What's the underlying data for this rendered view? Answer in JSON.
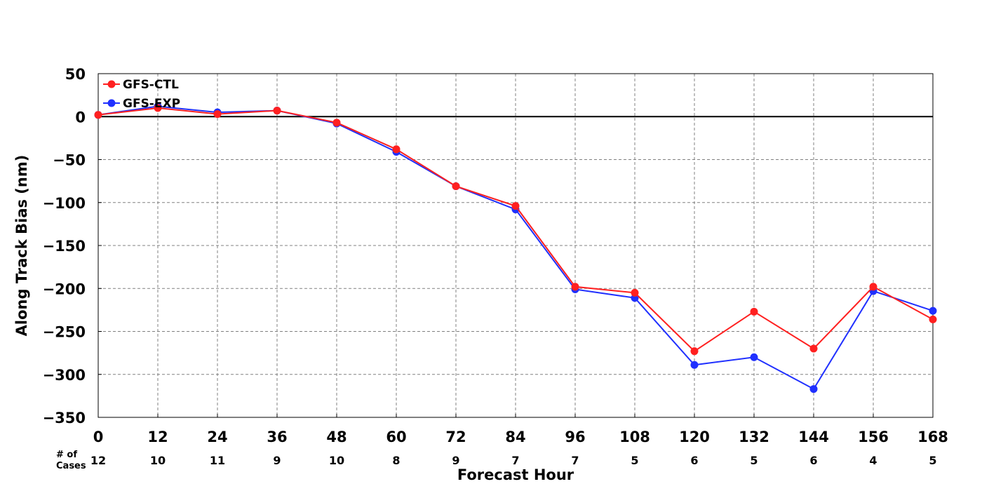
{
  "chart_data": {
    "type": "line",
    "xlabel": "Forecast Hour",
    "ylabel": "Along Track Bias (nm)",
    "xlim": [
      0,
      168
    ],
    "ylim": [
      -350,
      50
    ],
    "grid": true,
    "legend_position": "top-left",
    "x": [
      0,
      12,
      24,
      36,
      48,
      60,
      72,
      84,
      96,
      108,
      120,
      132,
      144,
      156,
      168
    ],
    "x_tick_labels": [
      "0",
      "12",
      "24",
      "36",
      "48",
      "60",
      "72",
      "84",
      "96",
      "108",
      "120",
      "132",
      "144",
      "156",
      "168"
    ],
    "y_ticks": [
      50,
      0,
      -50,
      -100,
      -150,
      -200,
      -250,
      -300,
      -350
    ],
    "y_tick_labels": [
      "50",
      "0",
      "−50",
      "−100",
      "−150",
      "−200",
      "−250",
      "−300",
      "−350"
    ],
    "cases_header": [
      "# of",
      "Cases"
    ],
    "cases": [
      "12",
      "10",
      "11",
      "9",
      "10",
      "8",
      "9",
      "7",
      "7",
      "5",
      "6",
      "5",
      "6",
      "4",
      "5"
    ],
    "series": [
      {
        "name": "GFS-CTL",
        "color": "#ff2020",
        "values": [
          2,
          10,
          3,
          7,
          -7,
          -38,
          -81,
          -104,
          -198,
          -205,
          -273,
          -227,
          -270,
          -198,
          -236
        ]
      },
      {
        "name": "GFS-EXP",
        "color": "#2030ff",
        "values": [
          2,
          12,
          5,
          7,
          -8,
          -41,
          -81,
          -108,
          -201,
          -211,
          -289,
          -280,
          -317,
          -203,
          -226
        ]
      }
    ]
  }
}
